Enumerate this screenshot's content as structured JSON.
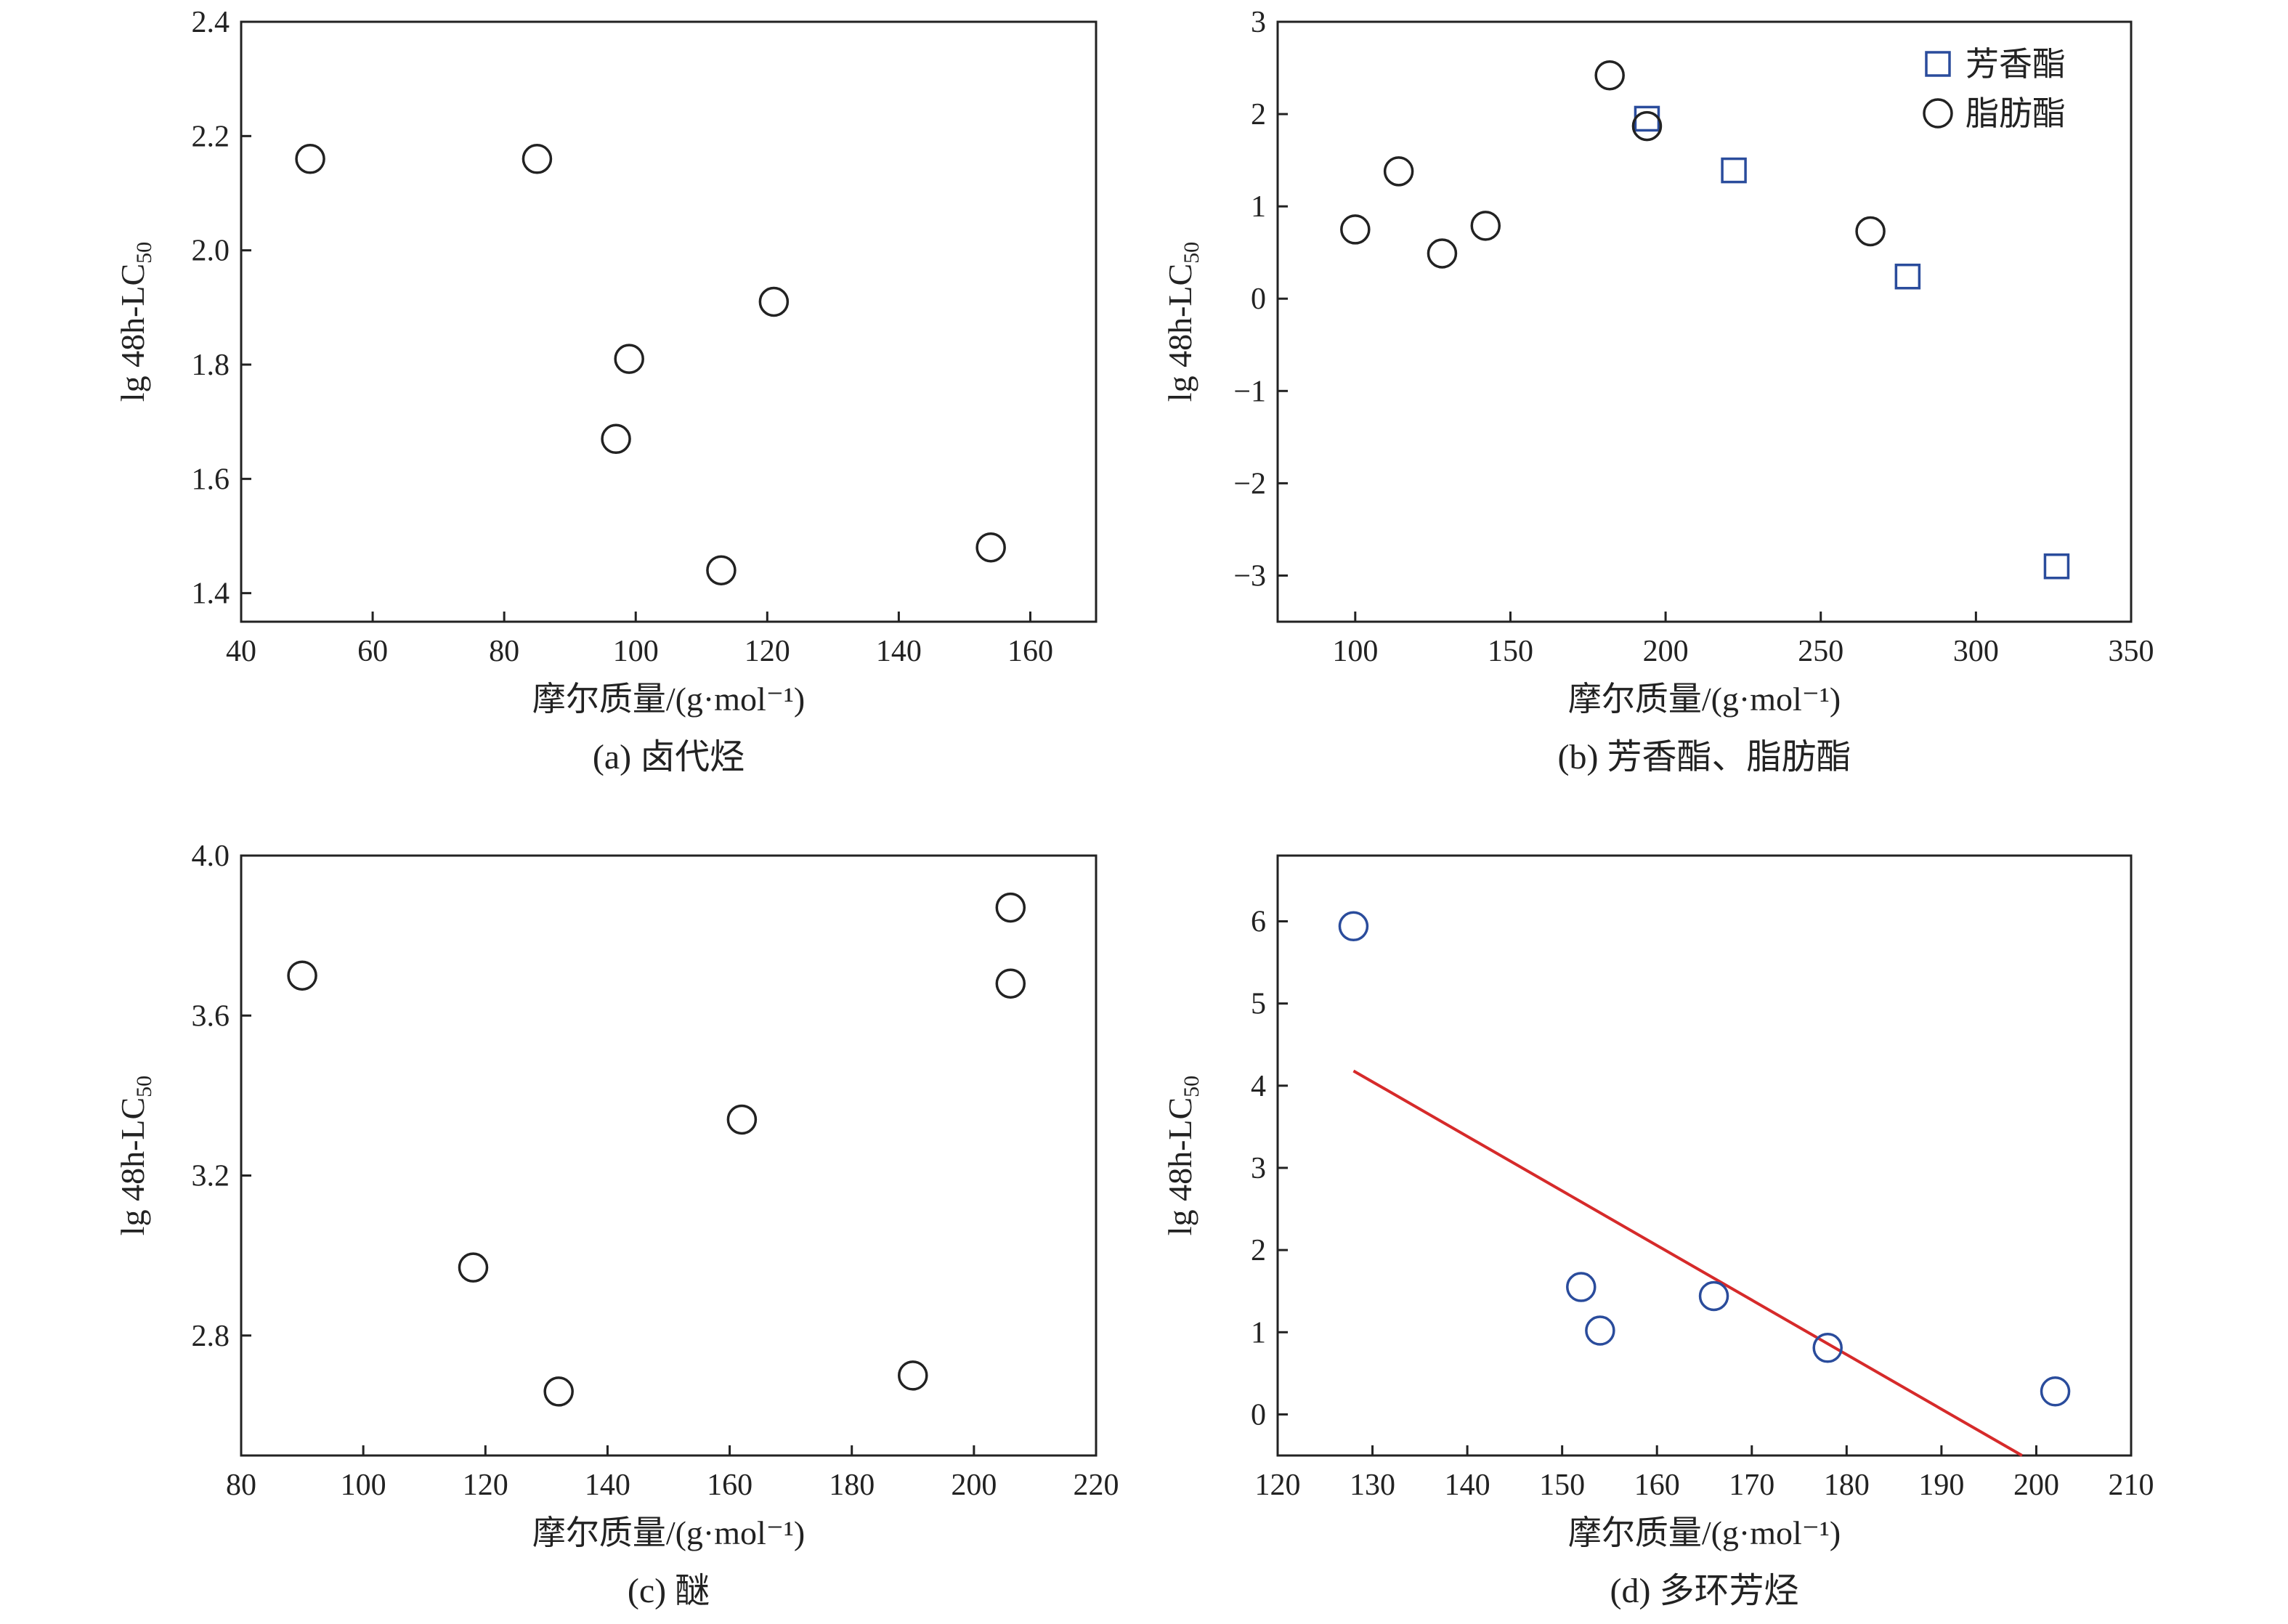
{
  "chart_data": [
    {
      "type": "scatter",
      "xlabel": "摩尔质量/(g·mol⁻¹)",
      "ylabel": "lg 48h-LC",
      "ylabel_sub": "50",
      "caption": "(a) 卤代烃",
      "xlim": [
        40,
        170
      ],
      "ylim": [
        1.35,
        2.4
      ],
      "xticks": [
        40,
        60,
        80,
        100,
        120,
        140,
        160
      ],
      "yticks": [
        "1.4",
        "1.6",
        "1.8",
        "2.0",
        "2.2",
        "2.4"
      ],
      "series": [
        {
          "color": "#222222",
          "marker": "circle",
          "points": [
            [
              50.5,
              2.16
            ],
            [
              85,
              2.16
            ],
            [
              97,
              1.67
            ],
            [
              99,
              1.81
            ],
            [
              113,
              1.44
            ],
            [
              121,
              1.91
            ],
            [
              154,
              1.48
            ]
          ]
        }
      ]
    },
    {
      "type": "scatter",
      "xlabel": "摩尔质量/(g·mol⁻¹)",
      "ylabel": "lg 48h-LC",
      "ylabel_sub": "50",
      "caption": "(b) 芳香酯、脂肪酯",
      "xlim": [
        75,
        350
      ],
      "ylim": [
        -3.5,
        3
      ],
      "xticks": [
        100,
        150,
        200,
        250,
        300,
        350
      ],
      "yticks": [
        "−3",
        "−2",
        "−1",
        "0",
        "1",
        "2",
        "3"
      ],
      "legend_position": "top-right",
      "series": [
        {
          "name": "芳香酯",
          "color": "#2a4c9c",
          "marker": "square",
          "points": [
            [
              194,
              1.95
            ],
            [
              222,
              1.39
            ],
            [
              278,
              0.24
            ],
            [
              326,
              -2.9
            ]
          ]
        },
        {
          "name": "脂肪酯",
          "color": "#222222",
          "marker": "circle",
          "points": [
            [
              100,
              0.75
            ],
            [
              114,
              1.38
            ],
            [
              128,
              0.49
            ],
            [
              142,
              0.79
            ],
            [
              182,
              2.42
            ],
            [
              194,
              1.87
            ],
            [
              266,
              0.73
            ]
          ]
        }
      ]
    },
    {
      "type": "scatter",
      "xlabel": "摩尔质量/(g·mol⁻¹)",
      "ylabel": "lg 48h-LC",
      "ylabel_sub": "50",
      "caption": "(c) 醚",
      "xlim": [
        80,
        220
      ],
      "ylim": [
        2.5,
        4.0
      ],
      "xticks": [
        80,
        100,
        120,
        140,
        160,
        180,
        200,
        220
      ],
      "yticks": [
        "2.8",
        "3.2",
        "3.6",
        "4.0"
      ],
      "series": [
        {
          "color": "#222222",
          "marker": "circle",
          "points": [
            [
              90,
              3.7
            ],
            [
              118,
              2.97
            ],
            [
              132,
              2.66
            ],
            [
              162,
              3.34
            ],
            [
              190,
              2.7
            ],
            [
              206,
              3.87
            ],
            [
              206,
              3.68
            ]
          ]
        }
      ]
    },
    {
      "type": "scatter",
      "xlabel": "摩尔质量/(g·mol⁻¹)",
      "ylabel": "lg 48h-LC",
      "ylabel_sub": "50",
      "caption": "(d) 多环芳烃",
      "xlim": [
        120,
        210
      ],
      "ylim": [
        -0.5,
        6.8
      ],
      "xticks": [
        120,
        130,
        140,
        150,
        160,
        170,
        180,
        190,
        200,
        210
      ],
      "yticks": [
        "0",
        "1",
        "2",
        "3",
        "4",
        "5",
        "6"
      ],
      "series": [
        {
          "color": "#2a4c9c",
          "marker": "circle",
          "points": [
            [
              128,
              5.94
            ],
            [
              152,
              1.55
            ],
            [
              154,
              1.02
            ],
            [
              166,
              1.44
            ],
            [
              178,
              0.81
            ],
            [
              202,
              0.28
            ]
          ]
        }
      ],
      "fit_line": {
        "color": "#d62a2a",
        "from": [
          128,
          4.18
        ],
        "to": [
          198.5,
          -0.5
        ]
      }
    }
  ]
}
